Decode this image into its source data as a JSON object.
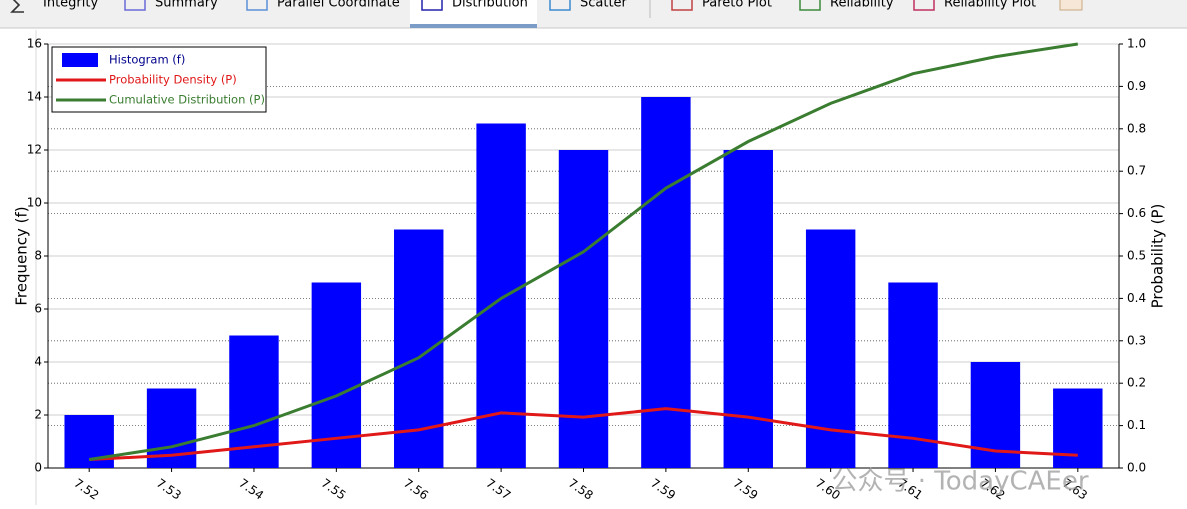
{
  "toolbar": {
    "tabs": [
      "Integrity",
      "Summary",
      "Parallel Coordinate",
      "Distribution",
      "Scatter",
      "Pareto Plot",
      "Reliability",
      "Reliability Plot"
    ],
    "selected": 3
  },
  "chart_data": {
    "type": "bar",
    "ylabel": "Frequency (f)",
    "y2label": "Probability (P)",
    "categories": [
      "7.52",
      "7.53",
      "7.54",
      "7.55",
      "7.56",
      "7.57",
      "7.58",
      "7.59",
      "7.59",
      "7.60",
      "7.61",
      "7.62",
      "7.63"
    ],
    "series": [
      {
        "name": "Histogram (f)",
        "type": "bar",
        "color": "#0000ff",
        "values": [
          2,
          3,
          5,
          7,
          9,
          13,
          12,
          14,
          12,
          9,
          7,
          4,
          3
        ]
      },
      {
        "name": "Probability Density (P)",
        "type": "line",
        "axis": "y2",
        "color": "#e01818",
        "values": [
          0.02,
          0.03,
          0.05,
          0.07,
          0.09,
          0.13,
          0.12,
          0.14,
          0.12,
          0.09,
          0.07,
          0.04,
          0.03
        ]
      },
      {
        "name": "Cumulative Distribution (P)",
        "type": "line",
        "axis": "y2",
        "color": "#3a7d30",
        "values": [
          0.02,
          0.05,
          0.1,
          0.17,
          0.26,
          0.4,
          0.51,
          0.66,
          0.77,
          0.86,
          0.93,
          0.97,
          1.0
        ]
      }
    ],
    "ylim": [
      0,
      16
    ],
    "yticks": [
      0,
      2,
      4,
      6,
      8,
      10,
      12,
      14,
      16
    ],
    "y2lim": [
      0,
      1
    ],
    "y2ticks": [
      {
        "value": 0,
        "label": "0.0"
      },
      0.1,
      0.2,
      0.3,
      0.4,
      0.5,
      0.6,
      0.7,
      0.8,
      0.9,
      {
        "value": 1,
        "label": "1.0"
      }
    ],
    "grid": true,
    "legend": "upper left"
  },
  "watermark": "公众号 · TodayCAEer"
}
